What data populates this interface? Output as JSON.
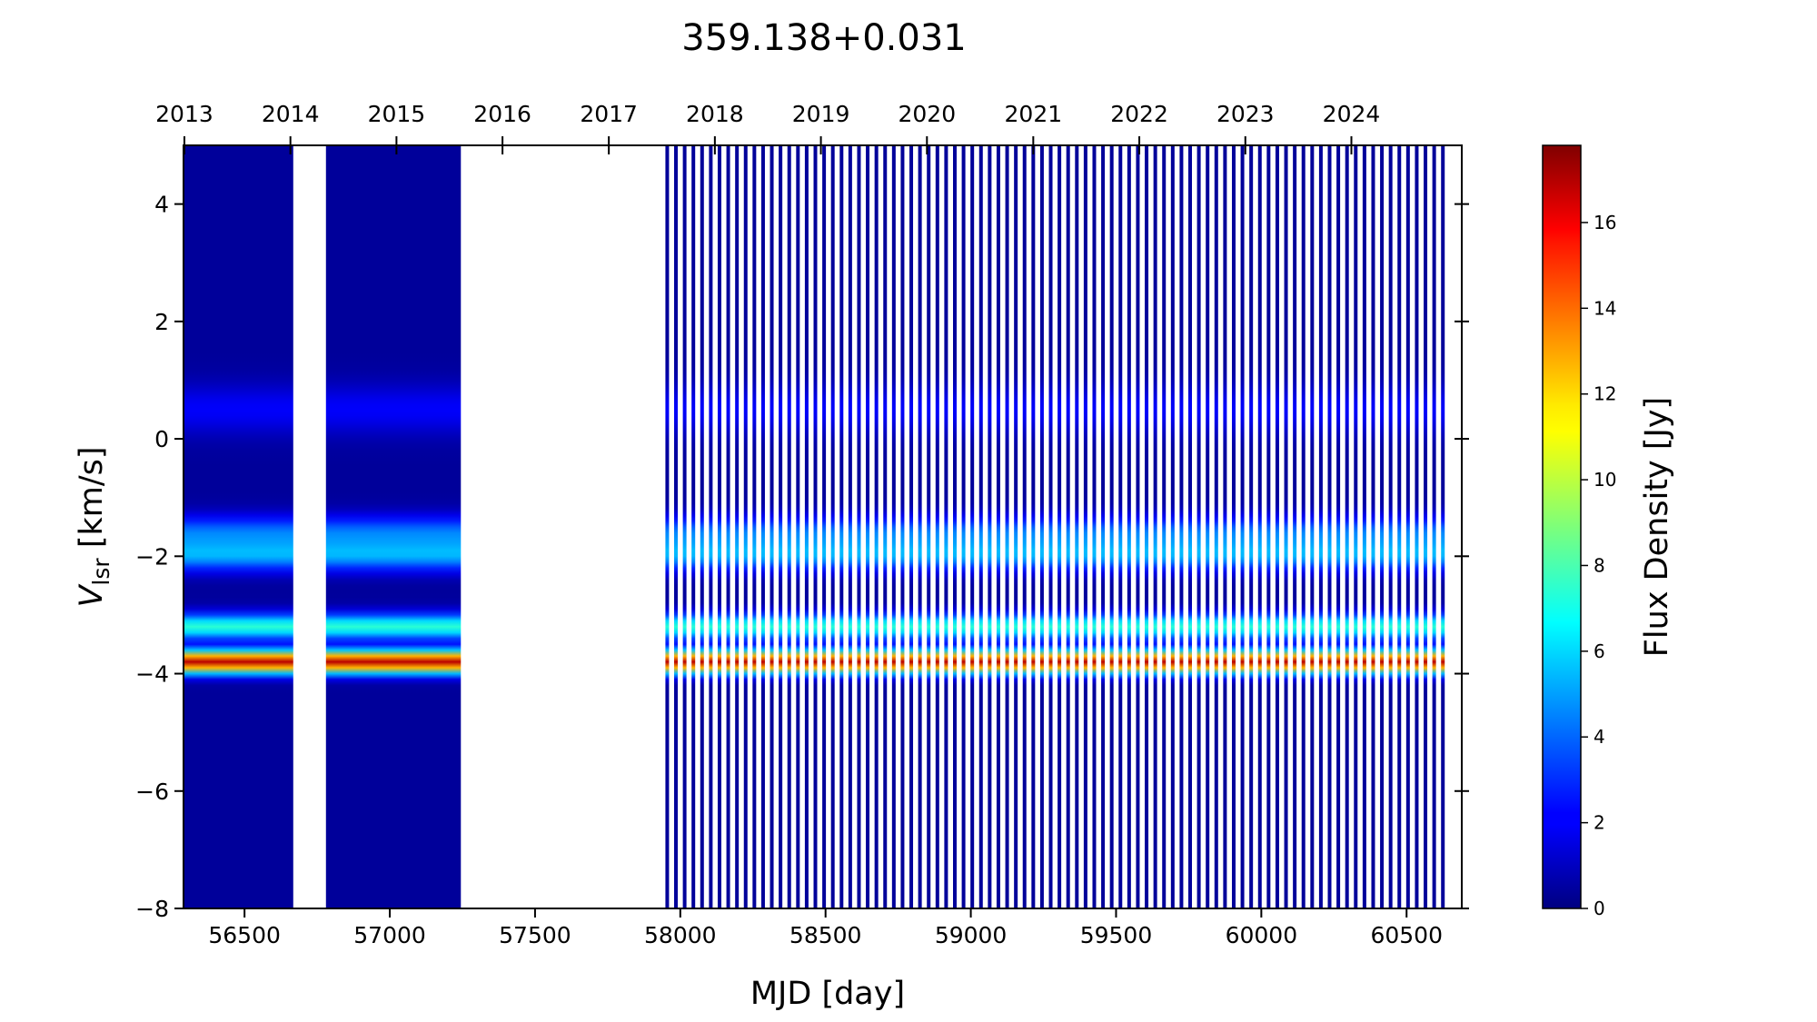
{
  "chart_data": {
    "type": "heatmap",
    "title": "359.138+0.031",
    "xlabel": "MJD [day]",
    "ylabel_main": "V",
    "ylabel_sub": "lsr",
    "ylabel_unit": " [km/s]",
    "colorbar_label": "Flux Density [Jy]",
    "colormap": "jet",
    "xlim": [
      56290,
      60690
    ],
    "ylim": [
      -8,
      5
    ],
    "clim": [
      0,
      17.8
    ],
    "x_ticks": [
      56500,
      57000,
      57500,
      58000,
      58500,
      59000,
      59500,
      60000,
      60500
    ],
    "x_tick_labels": [
      "56500",
      "57000",
      "57500",
      "58000",
      "58500",
      "59000",
      "59500",
      "60000",
      "60500"
    ],
    "y_ticks": [
      -8,
      -6,
      -4,
      -2,
      0,
      2,
      4
    ],
    "y_tick_labels": [
      "−8",
      "−6",
      "−4",
      "−2",
      "0",
      "2",
      "4"
    ],
    "year_ticks_mjd": [
      56293,
      56658,
      57023,
      57388,
      57754,
      58119,
      58484,
      58849,
      59215,
      59580,
      59945,
      60310
    ],
    "year_tick_labels": [
      "2013",
      "2014",
      "2015",
      "2016",
      "2017",
      "2018",
      "2019",
      "2020",
      "2021",
      "2022",
      "2023",
      "2024"
    ],
    "colorbar_ticks": [
      0,
      2,
      4,
      6,
      8,
      10,
      12,
      14,
      16
    ],
    "colorbar_tick_labels": [
      "0",
      "2",
      "4",
      "6",
      "8",
      "10",
      "12",
      "14",
      "16"
    ],
    "spectral_features": [
      {
        "velocity": -3.8,
        "width": 0.13,
        "peak_flux": 16.5
      },
      {
        "velocity": -3.2,
        "width": 0.15,
        "peak_flux": 7.0
      },
      {
        "velocity": -2.0,
        "width": 0.18,
        "peak_flux": 4.5
      },
      {
        "velocity": -1.6,
        "width": 0.2,
        "peak_flux": 3.8
      },
      {
        "velocity": 0.5,
        "width": 0.3,
        "peak_flux": 1.5
      }
    ],
    "observation_groups": [
      {
        "mjd_start": 56293,
        "mjd_end": 56665,
        "spacing": 5
      },
      {
        "mjd_start": 56785,
        "mjd_end": 57240,
        "spacing": 5
      },
      {
        "mjd_start": 57955,
        "mjd_end": 60640,
        "spacing": 30
      }
    ]
  }
}
